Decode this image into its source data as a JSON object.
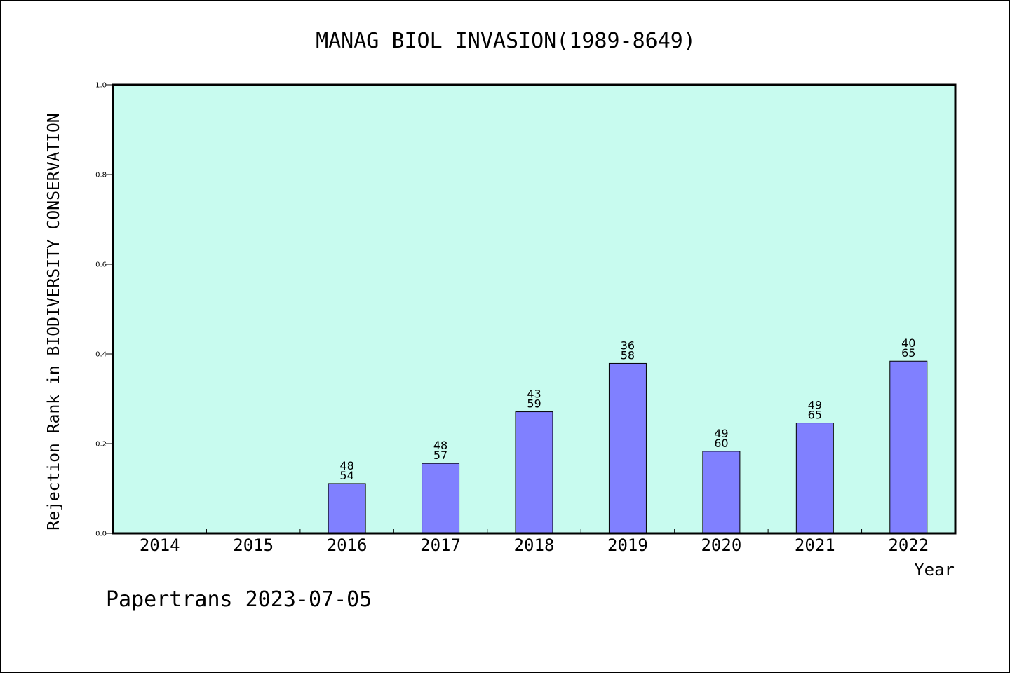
{
  "chart_data": {
    "type": "bar",
    "title": "MANAG BIOL INVASION(1989-8649)",
    "xlabel": "Year",
    "ylabel": "Rejection Rank in BIODIVERSITY CONSERVATION",
    "categories": [
      "2014",
      "2015",
      "2016",
      "2017",
      "2018",
      "2019",
      "2020",
      "2021",
      "2022"
    ],
    "values": [
      null,
      null,
      0.111,
      0.156,
      0.271,
      0.379,
      0.183,
      0.246,
      0.384
    ],
    "label_top": [
      "",
      "",
      "48",
      "48",
      "43",
      "36",
      "49",
      "49",
      "40"
    ],
    "label_bottom": [
      "",
      "",
      "54",
      "57",
      "59",
      "58",
      "60",
      "65",
      "65"
    ],
    "ylim": [
      0,
      1.0
    ],
    "yticks": [
      "0.0",
      "0.2",
      "0.4",
      "0.6",
      "0.8",
      "1.0"
    ],
    "grid": false,
    "legend": "none",
    "colors": {
      "plot_background": "#c8fbef",
      "bar_fill": "#8080ff",
      "bar_stroke": "#000000"
    }
  },
  "footer": "Papertrans 2023-07-05"
}
